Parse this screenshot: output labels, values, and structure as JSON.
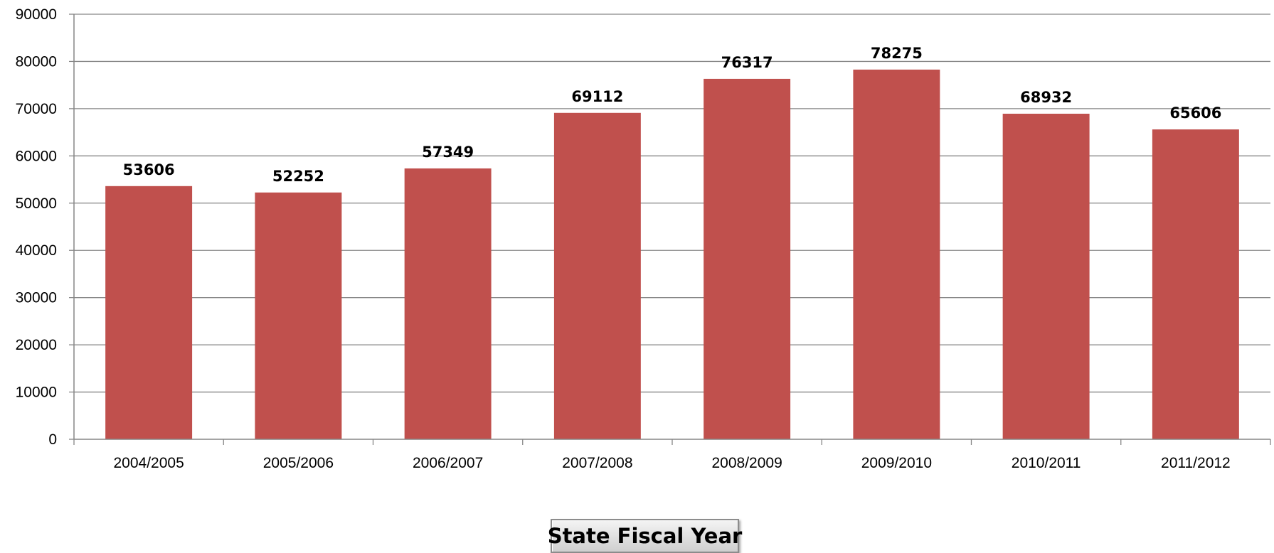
{
  "chart_data": {
    "type": "bar",
    "categories": [
      "2004/2005",
      "2005/2006",
      "2006/2007",
      "2007/2008",
      "2008/2009",
      "2009/2010",
      "2010/2011",
      "2011/2012"
    ],
    "values": [
      53606,
      52252,
      57349,
      69112,
      76317,
      78275,
      68932,
      65606
    ],
    "data_labels": [
      "53606",
      "52252",
      "57349",
      "69112",
      "76317",
      "78275",
      "68932",
      "65606"
    ],
    "ylim": [
      0,
      90000
    ],
    "yticks": [
      0,
      10000,
      20000,
      30000,
      40000,
      50000,
      60000,
      70000,
      80000,
      90000
    ],
    "ytick_labels": [
      "0",
      "10000",
      "20000",
      "30000",
      "40000",
      "50000",
      "60000",
      "70000",
      "80000",
      "90000"
    ],
    "xlabel": "State Fiscal Year",
    "ylabel": "",
    "title": "",
    "grid": true,
    "legend": "none",
    "bar_color": "#C0504D",
    "grid_color": "#868686"
  }
}
